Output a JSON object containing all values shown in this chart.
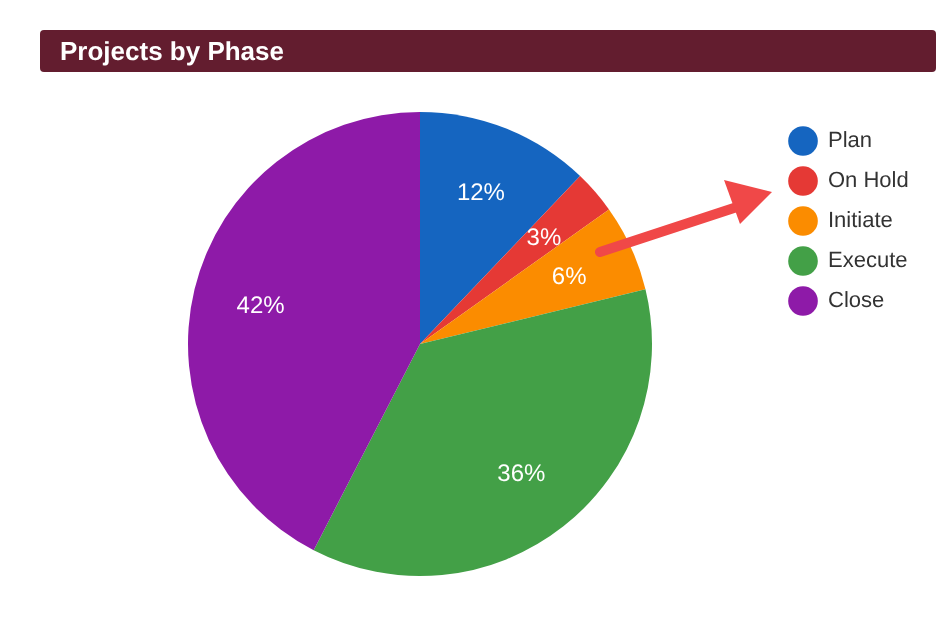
{
  "chart_data": {
    "type": "pie",
    "title": "Projects by Phase",
    "categories": [
      "Plan",
      "On Hold",
      "Initiate",
      "Execute",
      "Close"
    ],
    "values": [
      12,
      3,
      6,
      36,
      42
    ],
    "colors": [
      "#1565c0",
      "#e53935",
      "#fb8c00",
      "#43a047",
      "#8e1aa8"
    ],
    "value_labels": [
      "12%",
      "3%",
      "6%",
      "36%",
      "42%"
    ],
    "legend": "top right"
  }
}
